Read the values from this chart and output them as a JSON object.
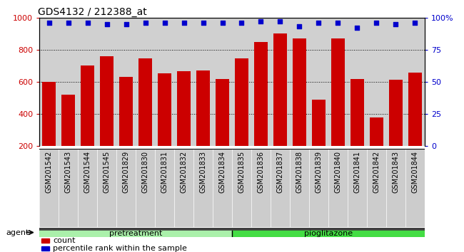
{
  "title": "GDS4132 / 212388_at",
  "samples": [
    "GSM201542",
    "GSM201543",
    "GSM201544",
    "GSM201545",
    "GSM201829",
    "GSM201830",
    "GSM201831",
    "GSM201832",
    "GSM201833",
    "GSM201834",
    "GSM201835",
    "GSM201836",
    "GSM201837",
    "GSM201838",
    "GSM201839",
    "GSM201840",
    "GSM201841",
    "GSM201842",
    "GSM201843",
    "GSM201844"
  ],
  "counts": [
    600,
    520,
    700,
    760,
    630,
    745,
    655,
    665,
    670,
    620,
    745,
    850,
    900,
    870,
    490,
    870,
    620,
    380,
    615,
    660
  ],
  "percentile_ranks": [
    96,
    96,
    96,
    95,
    95,
    96,
    96,
    96,
    96,
    96,
    96,
    97,
    97,
    93,
    96,
    96,
    92,
    96,
    95,
    96
  ],
  "pretreatment_count": 10,
  "pioglitazone_count": 10,
  "bar_color": "#cc0000",
  "dot_color": "#0000cc",
  "pretreatment_color": "#aaf0aa",
  "pioglitazone_color": "#44dd44",
  "agent_band_dark": "#404040",
  "ylim_left": [
    200,
    1000
  ],
  "ylim_right": [
    0,
    100
  ],
  "yticks_left": [
    200,
    400,
    600,
    800,
    1000
  ],
  "yticks_right": [
    0,
    25,
    50,
    75,
    100
  ],
  "plot_bg": "#d0d0d0",
  "fig_bg": "#ffffff",
  "title_fontsize": 10,
  "axis_fontsize": 8,
  "tick_label_fontsize": 7,
  "legend_count_label": "count",
  "legend_pct_label": "percentile rank within the sample"
}
